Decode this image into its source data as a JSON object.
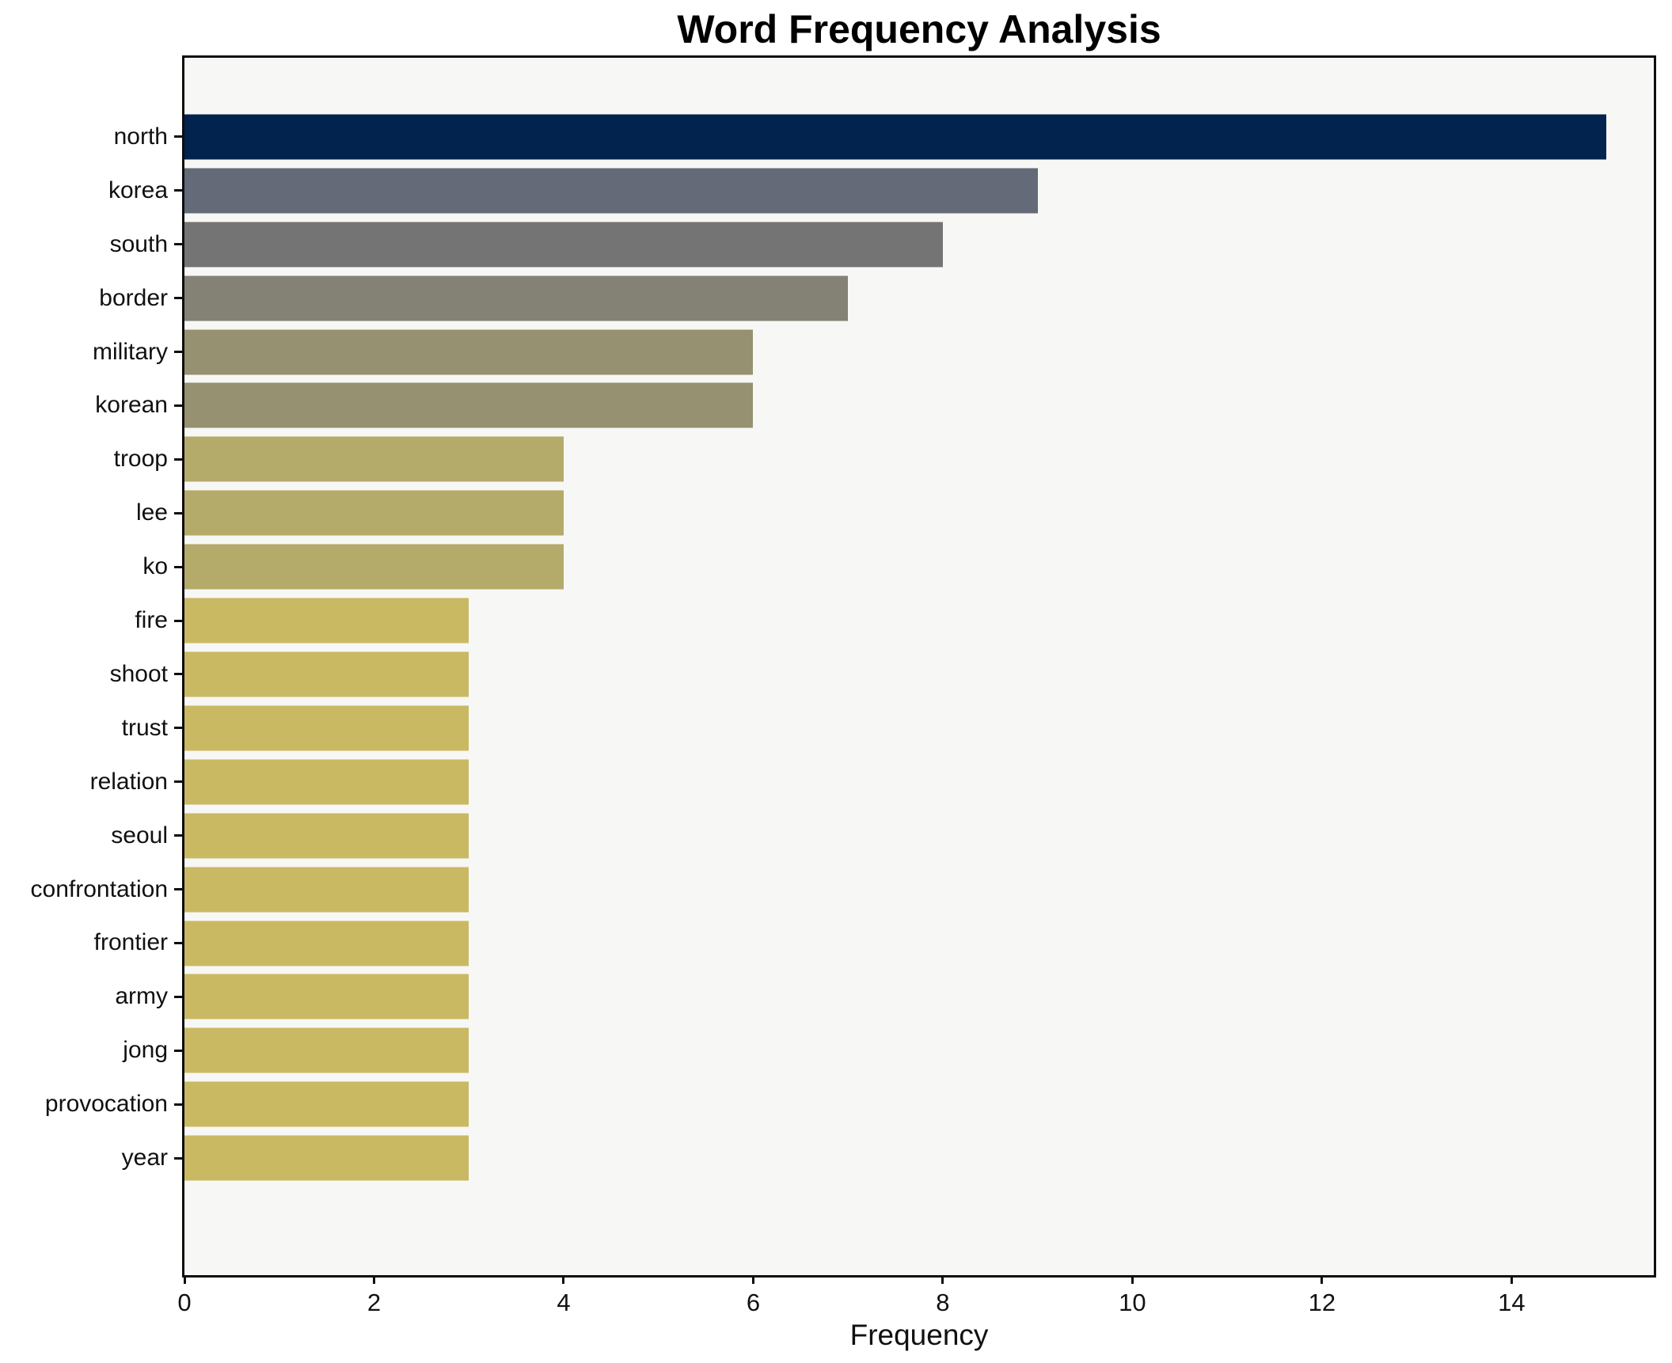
{
  "title": "Word Frequency Analysis",
  "axes": {
    "x_label": "Frequency",
    "x_tick_labels": [
      "0",
      "2",
      "4",
      "6",
      "8",
      "10",
      "12",
      "14"
    ]
  },
  "chart_data": {
    "type": "bar",
    "orientation": "horizontal",
    "title": "Word Frequency Analysis",
    "xlabel": "Frequency",
    "ylabel": "",
    "xlim": [
      0,
      15.5
    ],
    "xticks": [
      0,
      2,
      4,
      6,
      8,
      10,
      12,
      14
    ],
    "grid": false,
    "legend_position": "none",
    "plot_background": "#f7f7f5",
    "spine_color": "#0e0e0e",
    "categories": [
      "north",
      "korea",
      "south",
      "border",
      "military",
      "korean",
      "troop",
      "lee",
      "ko",
      "fire",
      "shoot",
      "trust",
      "relation",
      "seoul",
      "confrontation",
      "frontier",
      "army",
      "jong",
      "provocation",
      "year"
    ],
    "values": [
      15,
      9,
      8,
      7,
      6,
      6,
      4,
      4,
      4,
      3,
      3,
      3,
      3,
      3,
      3,
      3,
      3,
      3,
      3,
      3
    ],
    "bar_colors": [
      "#01234e",
      "#646a77",
      "#757474",
      "#848275",
      "#959171",
      "#959171",
      "#b4aa6a",
      "#b4aa6a",
      "#b4aa6a",
      "#cab963",
      "#cab963",
      "#cab963",
      "#cab963",
      "#cab963",
      "#cab963",
      "#cab963",
      "#cab963",
      "#cab963",
      "#cab963",
      "#cab963"
    ]
  }
}
